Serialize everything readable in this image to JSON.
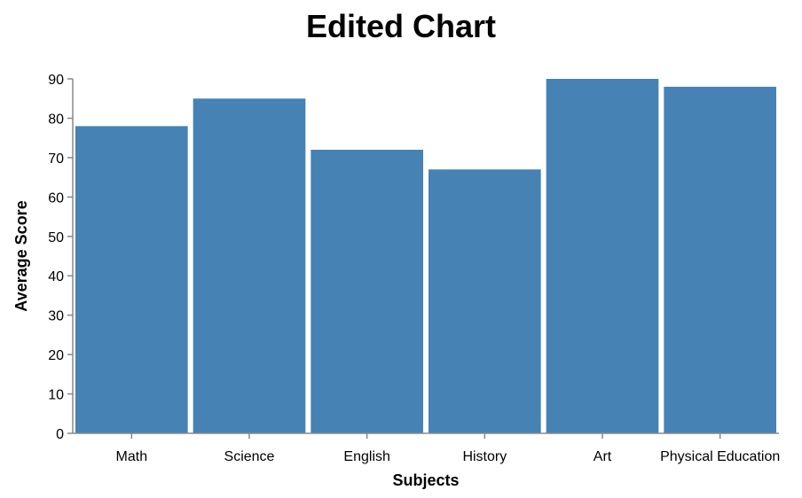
{
  "chart_data": {
    "type": "bar",
    "title": "Edited Chart",
    "xlabel": "Subjects",
    "ylabel": "Average Score",
    "categories": [
      "Math",
      "Science",
      "English",
      "History",
      "Art",
      "Physical Education"
    ],
    "values": [
      78,
      85,
      72,
      67,
      90,
      88
    ],
    "ylim": [
      0,
      90
    ],
    "yticks": [
      0,
      10,
      20,
      30,
      40,
      50,
      60,
      70,
      80,
      90
    ],
    "grid": false,
    "bar_color": "#4682b4"
  }
}
